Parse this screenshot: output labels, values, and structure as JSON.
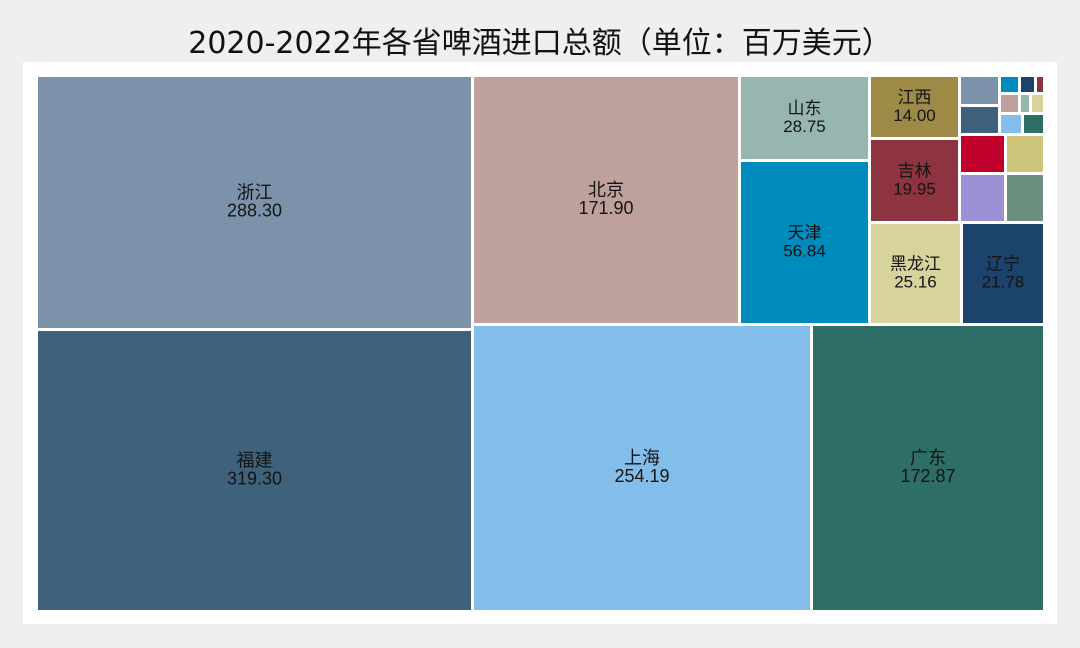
{
  "chart_data": {
    "type": "treemap",
    "title": "2020-2022年各省啤酒进口总额（单位：百万美元）",
    "items": [
      {
        "name": "福建",
        "value": 319.3,
        "color": "#3f627c"
      },
      {
        "name": "浙江",
        "value": 288.3,
        "color": "#7b92aa"
      },
      {
        "name": "上海",
        "value": 254.19,
        "color": "#82bee9"
      },
      {
        "name": "广东",
        "value": 172.87,
        "color": "#2e6e66"
      },
      {
        "name": "北京",
        "value": 171.9,
        "color": "#bfa19c"
      },
      {
        "name": "天津",
        "value": 56.84,
        "color": "#008bbd"
      },
      {
        "name": "山东",
        "value": 28.75,
        "color": "#98b6b0"
      },
      {
        "name": "黑龙江",
        "value": 25.16,
        "color": "#d6d39c"
      },
      {
        "name": "辽宁",
        "value": 21.78,
        "color": "#1c436c"
      },
      {
        "name": "吉林",
        "value": 19.95,
        "color": "#8e3340"
      },
      {
        "name": "江西",
        "value": 14.0,
        "color": "#9c8a46"
      }
    ],
    "small_colors": [
      "#7b92aa",
      "#008bbd",
      "#1c436c",
      "#bfa19c",
      "#98b6b0",
      "#d6d39c",
      "#3f627c",
      "#82bee9",
      "#2e6e66",
      "#c2002c",
      "#cdc57c",
      "#9a91d6",
      "#6c8f7e",
      "#8e3340"
    ]
  }
}
